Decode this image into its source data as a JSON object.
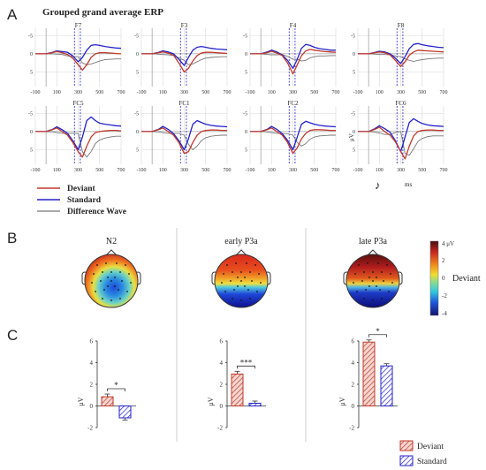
{
  "figure": {
    "panel_labels": [
      "A",
      "B",
      "C"
    ],
    "title": "Grouped grand average ERP",
    "legend": [
      {
        "label": "Deviant",
        "color": "#c0392b"
      },
      {
        "label": "Standard",
        "color": "#2222c8"
      },
      {
        "label": "Difference Wave",
        "color": "#777777"
      }
    ],
    "waveform_axis": {
      "x_ticks": [
        "-100",
        "100",
        "300",
        "500",
        "700"
      ],
      "y_ticks": [
        "-5",
        "0",
        "5"
      ],
      "xlabel": "ms",
      "ylabel": "μV",
      "vline_ms": [
        265,
        320
      ]
    },
    "topomaps": {
      "titles": [
        "N2",
        "early P3a",
        "late P3a"
      ],
      "colorbar_ticks": [
        "4 μV",
        "2",
        "0",
        "-2",
        "-4"
      ],
      "colorbar_label": "Deviant"
    },
    "bars": {
      "y_ticks": [
        "6",
        "4",
        "2",
        "0",
        "-2"
      ],
      "ylabel": "μV",
      "legend": [
        {
          "label": "Deviant",
          "color": "#c0392b"
        },
        {
          "label": "Standard",
          "color": "#2222c8"
        }
      ]
    }
  },
  "chart_data": [
    {
      "type": "line",
      "title": "F7",
      "x": [
        -100,
        0,
        60,
        100,
        150,
        200,
        250,
        300,
        340,
        380,
        420,
        460,
        500,
        550,
        600,
        650,
        700
      ],
      "series": [
        {
          "name": "Deviant",
          "values": [
            0,
            0,
            -0.3,
            -0.6,
            -0.3,
            0.2,
            1.2,
            3,
            4.5,
            3,
            1,
            0,
            -0.3,
            -0.3,
            -0.2,
            -0.1,
            0
          ]
        },
        {
          "name": "Standard",
          "values": [
            0,
            0,
            -0.4,
            -0.8,
            -0.6,
            -0.4,
            0.6,
            2.2,
            1,
            -1,
            -2.3,
            -2.5,
            -2.3,
            -2,
            -1.8,
            -1.6,
            -1.5
          ]
        },
        {
          "name": "Difference Wave",
          "values": [
            0,
            0,
            0,
            0.1,
            0.2,
            0.6,
            0.7,
            0.8,
            2.5,
            3,
            2.8,
            2.4,
            2,
            1.6,
            1.5,
            1.4,
            1.4
          ]
        }
      ]
    },
    {
      "type": "line",
      "title": "F3",
      "x": [
        -100,
        0,
        60,
        100,
        150,
        200,
        250,
        300,
        340,
        380,
        420,
        460,
        500,
        550,
        600,
        650,
        700
      ],
      "series": [
        {
          "name": "Deviant",
          "values": [
            0,
            0,
            -0.3,
            -0.5,
            -0.2,
            0.4,
            2.5,
            5,
            4,
            2,
            0.5,
            -0.2,
            -0.4,
            -0.4,
            -0.3,
            -0.2,
            -0.1
          ]
        },
        {
          "name": "Standard",
          "values": [
            0,
            0,
            -0.4,
            -0.8,
            -0.5,
            0,
            1.5,
            3.2,
            1,
            -1,
            -1.8,
            -2,
            -1.8,
            -1.5,
            -1.3,
            -1.2,
            -1.1
          ]
        },
        {
          "name": "Difference Wave",
          "values": [
            0,
            0,
            0.1,
            0.2,
            0.3,
            0.5,
            1.1,
            1.8,
            3,
            2.8,
            2.2,
            1.6,
            1.2,
            1,
            0.9,
            0.8,
            0.8
          ]
        }
      ]
    },
    {
      "type": "line",
      "title": "F4",
      "x": [
        -100,
        0,
        60,
        100,
        150,
        200,
        250,
        300,
        340,
        380,
        420,
        460,
        500,
        550,
        600,
        650,
        700
      ],
      "series": [
        {
          "name": "Deviant",
          "values": [
            0,
            0,
            -0.3,
            -0.7,
            -0.2,
            0.5,
            2.5,
            5.5,
            3,
            0.5,
            -0.8,
            -1.2,
            -1,
            -0.8,
            -0.6,
            -0.5,
            -0.4
          ]
        },
        {
          "name": "Standard",
          "values": [
            0,
            0,
            -0.5,
            -1,
            -0.5,
            0.3,
            1.8,
            4,
            1.5,
            -1.5,
            -2.6,
            -2.3,
            -1.8,
            -1.4,
            -1.2,
            -1,
            -1
          ]
        },
        {
          "name": "Difference Wave",
          "values": [
            0,
            0,
            0.2,
            0.3,
            0.3,
            0.2,
            0.7,
            1.5,
            1.5,
            2,
            1.8,
            1.1,
            0.8,
            0.6,
            0.6,
            0.5,
            0.5
          ]
        }
      ]
    },
    {
      "type": "line",
      "title": "F8",
      "x": [
        -100,
        0,
        60,
        100,
        150,
        200,
        250,
        300,
        340,
        380,
        420,
        460,
        500,
        550,
        600,
        650,
        700
      ],
      "series": [
        {
          "name": "Deviant",
          "values": [
            0,
            0,
            -0.3,
            -0.5,
            -0.3,
            0.3,
            1.8,
            3.5,
            2.2,
            0.4,
            -0.5,
            -1,
            -0.9,
            -0.8,
            -0.7,
            -0.6,
            -0.5
          ]
        },
        {
          "name": "Standard",
          "values": [
            0,
            0,
            -0.4,
            -0.7,
            -0.5,
            0,
            1.2,
            2.7,
            0.8,
            -1.4,
            -2.6,
            -2.8,
            -2.5,
            -2.2,
            -2,
            -1.8,
            -1.7
          ]
        },
        {
          "name": "Difference Wave",
          "values": [
            0,
            0,
            0.1,
            0.2,
            0.2,
            0.3,
            0.6,
            0.8,
            1.4,
            1.8,
            2.1,
            1.8,
            1.6,
            1.4,
            1.3,
            1.2,
            1.2
          ]
        }
      ]
    },
    {
      "type": "line",
      "title": "FC5",
      "x": [
        -100,
        0,
        60,
        100,
        150,
        200,
        250,
        300,
        340,
        380,
        420,
        460,
        500,
        550,
        600,
        650,
        700
      ],
      "series": [
        {
          "name": "Deviant",
          "values": [
            0,
            0,
            -0.5,
            -1,
            0,
            1,
            3,
            5.5,
            7,
            4,
            1.5,
            0.3,
            0,
            -0.2,
            -0.3,
            -0.3,
            -0.2
          ]
        },
        {
          "name": "Standard",
          "values": [
            0,
            0,
            -0.6,
            -1.3,
            -0.5,
            0.5,
            2.5,
            5,
            1.5,
            -3,
            -4,
            -3,
            -2.3,
            -2,
            -1.8,
            -1.6,
            -1.5
          ]
        },
        {
          "name": "Difference Wave",
          "values": [
            0,
            0,
            0.1,
            0.3,
            0.5,
            0.5,
            0.5,
            0.5,
            5.5,
            7,
            5.5,
            3.3,
            2.3,
            1.8,
            1.5,
            1.3,
            1.3
          ]
        }
      ]
    },
    {
      "type": "line",
      "title": "FC1",
      "x": [
        -100,
        0,
        60,
        100,
        150,
        200,
        250,
        300,
        340,
        380,
        420,
        460,
        500,
        550,
        600,
        650,
        700
      ],
      "series": [
        {
          "name": "Deviant",
          "values": [
            0,
            0,
            -0.5,
            -1,
            0,
            1,
            3,
            6,
            5.5,
            3,
            1,
            0,
            -0.3,
            -0.4,
            -0.4,
            -0.3,
            -0.3
          ]
        },
        {
          "name": "Standard",
          "values": [
            0,
            0,
            -0.6,
            -1.4,
            -0.6,
            0.6,
            2.5,
            5,
            2,
            -2,
            -3,
            -2.5,
            -2,
            -1.7,
            -1.5,
            -1.4,
            -1.3
          ]
        },
        {
          "name": "Difference Wave",
          "values": [
            0,
            0,
            0.1,
            0.3,
            0.5,
            0.5,
            0.5,
            1,
            3.5,
            5,
            4,
            2.5,
            1.7,
            1.3,
            1.1,
            1,
            1
          ]
        }
      ]
    },
    {
      "type": "line",
      "title": "FC2",
      "x": [
        -100,
        0,
        60,
        100,
        150,
        200,
        250,
        300,
        340,
        380,
        420,
        460,
        500,
        550,
        600,
        650,
        700
      ],
      "series": [
        {
          "name": "Deviant",
          "values": [
            0,
            0,
            -0.5,
            -1,
            0,
            1,
            3,
            6,
            4.5,
            2,
            0.5,
            -0.3,
            -0.5,
            -0.5,
            -0.4,
            -0.3,
            -0.3
          ]
        },
        {
          "name": "Standard",
          "values": [
            0,
            0,
            -0.6,
            -1.4,
            -0.6,
            0.6,
            2.4,
            5,
            1.5,
            -2,
            -2.8,
            -2.4,
            -2,
            -1.7,
            -1.5,
            -1.4,
            -1.3
          ]
        },
        {
          "name": "Difference Wave",
          "values": [
            0,
            0,
            0.1,
            0.3,
            0.5,
            0.5,
            0.6,
            1,
            3,
            4,
            3.3,
            2.1,
            1.5,
            1.2,
            1.1,
            1,
            1
          ]
        }
      ]
    },
    {
      "type": "line",
      "title": "FC6",
      "x": [
        -100,
        0,
        60,
        100,
        150,
        200,
        250,
        300,
        340,
        380,
        420,
        460,
        500,
        550,
        600,
        650,
        700
      ],
      "series": [
        {
          "name": "Deviant",
          "values": [
            0,
            0,
            -0.6,
            -1.2,
            0,
            1,
            2.8,
            5.5,
            7.5,
            4,
            1.2,
            0,
            -0.3,
            -0.4,
            -0.4,
            -0.3,
            -0.3
          ]
        },
        {
          "name": "Standard",
          "values": [
            0,
            0,
            -0.8,
            -1.6,
            -0.8,
            0.2,
            2.5,
            5.5,
            1.5,
            -2.5,
            -3.5,
            -2.8,
            -2.2,
            -1.8,
            -1.6,
            -1.5,
            -1.4
          ]
        },
        {
          "name": "Difference Wave",
          "values": [
            0,
            0,
            0.2,
            0.4,
            0.8,
            0.8,
            0.3,
            0,
            6,
            6.5,
            4.7,
            2.8,
            1.9,
            1.4,
            1.2,
            1.2,
            1.2
          ]
        }
      ]
    },
    {
      "type": "bar",
      "title": "N2",
      "categories": [
        "Deviant",
        "Standard"
      ],
      "values": [
        0.85,
        -1.1
      ],
      "errors": [
        0.25,
        0.2
      ],
      "significance": "*",
      "ylim": [
        -2,
        6
      ]
    },
    {
      "type": "bar",
      "title": "early P3a",
      "categories": [
        "Deviant",
        "Standard"
      ],
      "values": [
        2.95,
        0.25
      ],
      "errors": [
        0.25,
        0.2
      ],
      "significance": "***",
      "ylim": [
        -2,
        6
      ]
    },
    {
      "type": "bar",
      "title": "late P3a",
      "categories": [
        "Deviant",
        "Standard"
      ],
      "values": [
        5.9,
        3.7
      ],
      "errors": [
        0.2,
        0.2
      ],
      "significance": "*",
      "ylim": [
        -2,
        6
      ]
    }
  ]
}
